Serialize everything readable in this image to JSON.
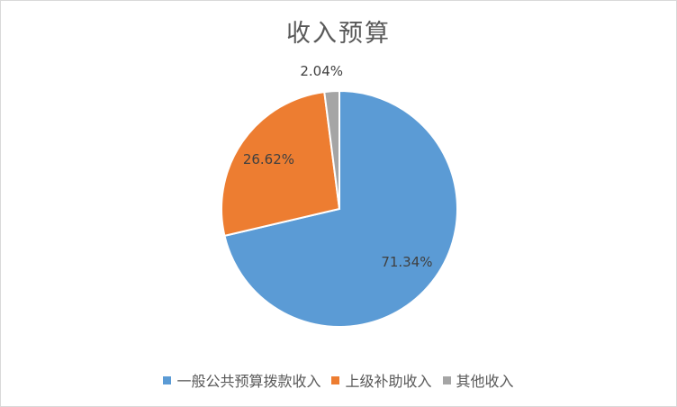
{
  "chart_data": {
    "type": "pie",
    "title": "收入预算",
    "categories": [
      "一般公共预算拨款收入",
      "上级补助收入",
      "其他收入"
    ],
    "values": [
      71.34,
      26.62,
      2.04
    ],
    "data_labels": [
      "71.34%",
      "26.62%",
      "2.04%"
    ],
    "colors": [
      "#5B9BD5",
      "#ED7D31",
      "#A5A5A5"
    ],
    "legend_position": "bottom"
  }
}
